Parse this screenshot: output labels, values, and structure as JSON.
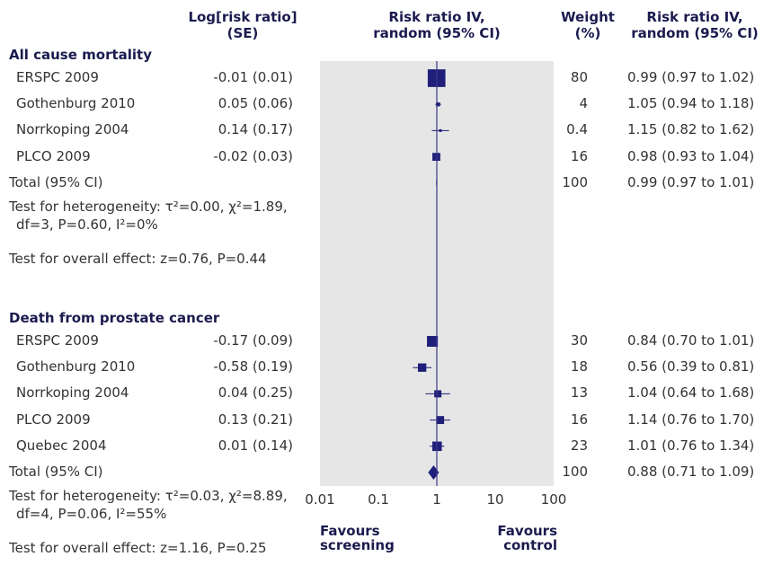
{
  "headers": {
    "logrr": "Log[risk ratio]\n(SE)",
    "forest": "Risk ratio IV,\nrandom (95% CI)",
    "weight": "Weight\n(%)",
    "rr": "Risk ratio IV,\nrandom (95% CI)"
  },
  "colors": {
    "panel": "#e6e6e6",
    "marker": "#1f1f7a",
    "refline": "#3a3a8c"
  },
  "chart_data": {
    "type": "forest",
    "x_scale": "log",
    "xlim": [
      0.01,
      100
    ],
    "ticks": [
      0.01,
      0.1,
      1,
      10,
      100
    ],
    "tick_labels": [
      "0.01",
      "0.1",
      "1",
      "10",
      "100"
    ],
    "reference_line": 1,
    "favours_left": "Favours\nscreening",
    "favours_right": "Favours\ncontrol",
    "sections": [
      {
        "title": "All cause mortality",
        "studies": [
          {
            "name": "ERSPC 2009",
            "logrr": "-0.01 (0.01)",
            "weight": "80",
            "rr_text": "0.99 (0.97 to 1.02)",
            "rr": 0.99,
            "lo": 0.97,
            "hi": 1.02,
            "w": 80
          },
          {
            "name": "Gothenburg 2010",
            "logrr": "0.05 (0.06)",
            "weight": "4",
            "rr_text": "1.05 (0.94 to 1.18)",
            "rr": 1.05,
            "lo": 0.94,
            "hi": 1.18,
            "w": 4
          },
          {
            "name": "Norrkoping 2004",
            "logrr": "0.14 (0.17)",
            "weight": "0.4",
            "rr_text": "1.15 (0.82 to 1.62)",
            "rr": 1.15,
            "lo": 0.82,
            "hi": 1.62,
            "w": 0.4
          },
          {
            "name": "PLCO 2009",
            "logrr": "-0.02 (0.03)",
            "weight": "16",
            "rr_text": "0.98 (0.93 to 1.04)",
            "rr": 0.98,
            "lo": 0.93,
            "hi": 1.04,
            "w": 16
          }
        ],
        "total": {
          "name": "Total (95% CI)",
          "weight": "100",
          "rr_text": "0.99 (0.97 to 1.01)",
          "rr": 0.99,
          "lo": 0.97,
          "hi": 1.01
        },
        "heterogeneity_line1": "Test for heterogeneity: τ²=0.00, χ²=1.89,",
        "heterogeneity_line2": "df=3, P=0.60, I²=0%",
        "overall": "Test for overall effect: z=0.76, P=0.44"
      },
      {
        "title": "Death from prostate cancer",
        "studies": [
          {
            "name": "ERSPC 2009",
            "logrr": "-0.17 (0.09)",
            "weight": "30",
            "rr_text": "0.84 (0.70 to 1.01)",
            "rr": 0.84,
            "lo": 0.7,
            "hi": 1.01,
            "w": 30
          },
          {
            "name": "Gothenburg 2010",
            "logrr": "-0.58 (0.19)",
            "weight": "18",
            "rr_text": "0.56 (0.39 to 0.81)",
            "rr": 0.56,
            "lo": 0.39,
            "hi": 0.81,
            "w": 18
          },
          {
            "name": "Norrkoping 2004",
            "logrr": "0.04 (0.25)",
            "weight": "13",
            "rr_text": "1.04 (0.64 to 1.68)",
            "rr": 1.04,
            "lo": 0.64,
            "hi": 1.68,
            "w": 13
          },
          {
            "name": "PLCO 2009",
            "logrr": "0.13 (0.21)",
            "weight": "16",
            "rr_text": "1.14 (0.76 to 1.70)",
            "rr": 1.14,
            "lo": 0.76,
            "hi": 1.7,
            "w": 16
          },
          {
            "name": "Quebec 2004",
            "logrr": "0.01 (0.14)",
            "weight": "23",
            "rr_text": "1.01 (0.76 to 1.34)",
            "rr": 1.01,
            "lo": 0.76,
            "hi": 1.34,
            "w": 23
          }
        ],
        "total": {
          "name": "Total (95% CI)",
          "weight": "100",
          "rr_text": "0.88 (0.71 to 1.09)",
          "rr": 0.88,
          "lo": 0.71,
          "hi": 1.09
        },
        "heterogeneity_line1": "Test for heterogeneity: τ²=0.03, χ²=8.89,",
        "heterogeneity_line2": "df=4, P=0.06, I²=55%",
        "overall": "Test for overall effect: z=1.16, P=0.25"
      }
    ]
  }
}
